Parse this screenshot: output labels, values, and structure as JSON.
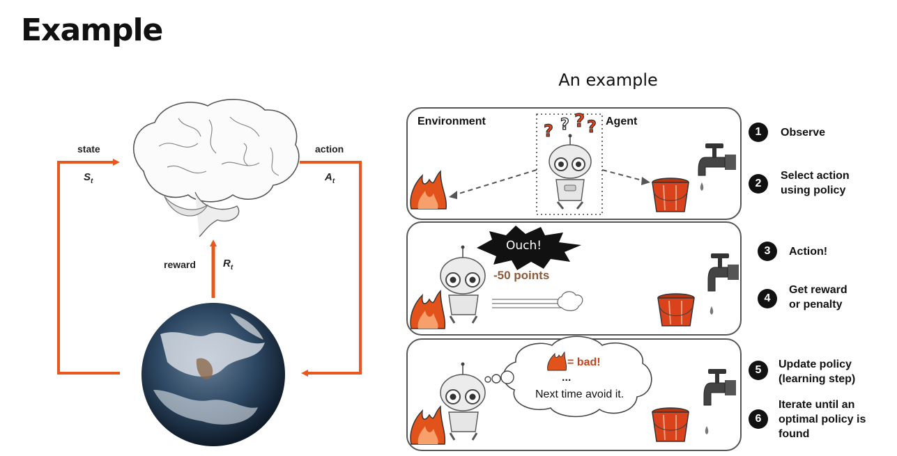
{
  "slide": {
    "title": "Example"
  },
  "left_diagram": {
    "state_label": "state",
    "state_symbol": "S",
    "state_sub": "t",
    "action_label": "action",
    "action_symbol": "A",
    "action_sub": "t",
    "reward_label": "reward",
    "reward_symbol": "R",
    "reward_sub": "t",
    "arrow_color": "#E8581E"
  },
  "right_diagram": {
    "heading": "An example",
    "panel1": {
      "environment_label": "Environment",
      "agent_label": "Agent",
      "question_marks": "?"
    },
    "panel2": {
      "shout": "Ouch!",
      "points": "-50 points"
    },
    "panel3": {
      "thought_main": "= bad!",
      "thought_ellipsis": "...",
      "thought_line": "Next time avoid it."
    },
    "steps": [
      {
        "num": "1",
        "lines": [
          "Observe"
        ]
      },
      {
        "num": "2",
        "lines": [
          "Select action",
          "using policy"
        ]
      },
      {
        "num": "3",
        "lines": [
          "Action!"
        ]
      },
      {
        "num": "4",
        "lines": [
          "Get reward",
          "or penalty"
        ]
      },
      {
        "num": "5",
        "lines": [
          "Update policy",
          "(learning step)"
        ]
      },
      {
        "num": "6",
        "lines": [
          "Iterate until an",
          "optimal policy is",
          "found"
        ]
      }
    ],
    "colors": {
      "fire": "#E2531B",
      "bucket": "#D9421A",
      "question": "#D9421A"
    }
  }
}
